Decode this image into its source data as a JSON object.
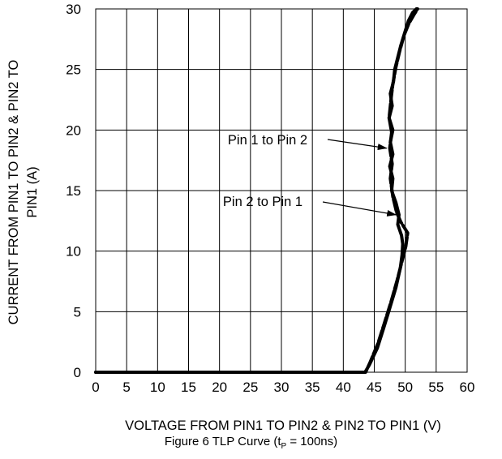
{
  "chart_data": {
    "type": "line",
    "title": "",
    "xlabel": "VOLTAGE FROM PIN1 TO PIN2 & PIN2 TO PIN1 (V)",
    "ylabel_line1": "CURRENT FROM PIN1 TO PIN2 & PIN2 TO",
    "ylabel_line2": "PIN1 (A)",
    "xlim": [
      0,
      60
    ],
    "ylim": [
      0,
      30
    ],
    "xticks": [
      0,
      5,
      10,
      15,
      20,
      25,
      30,
      35,
      40,
      45,
      50,
      55,
      60
    ],
    "yticks": [
      0,
      5,
      10,
      15,
      20,
      25,
      30
    ],
    "grid": true,
    "series": [
      {
        "name": "Pin 1 to Pin 2",
        "color": "#000000",
        "x": [
          0,
          20,
          40,
          43.5,
          44.2,
          45.5,
          46.5,
          47.5,
          48.5,
          49.2,
          49.5,
          49.6,
          49.4,
          48.8,
          49.0,
          48.5,
          47.8,
          48.0,
          47.5,
          48.0,
          47.6,
          48.0,
          47.4,
          47.9,
          47.6,
          48.1,
          48.3,
          48.8,
          49.3,
          49.9,
          50.5,
          51.2,
          51.8
        ],
        "y": [
          0,
          0,
          0,
          0,
          0.6,
          2.0,
          3.6,
          5.3,
          7.0,
          8.6,
          9.7,
          10.6,
          11.3,
          12.2,
          13.0,
          14.0,
          15.0,
          16.0,
          17.0,
          18.0,
          19.0,
          20.0,
          21.0,
          22.0,
          23.0,
          24.0,
          25.0,
          26.0,
          27.0,
          28.0,
          29.0,
          29.7,
          30.0
        ]
      },
      {
        "name": "Pin 2 to Pin 1",
        "color": "#000000",
        "x": [
          0,
          20,
          40,
          43.6,
          44.3,
          45.6,
          46.6,
          47.7,
          48.7,
          49.4,
          50.1,
          50.4,
          49.3,
          48.6,
          48.0,
          47.6,
          47.9,
          47.5,
          47.8,
          47.4,
          47.7,
          48.0,
          48.5,
          49.1,
          49.8,
          50.6,
          51.5,
          52.0
        ],
        "y": [
          0,
          0,
          0,
          0,
          0.8,
          2.4,
          4.0,
          5.8,
          7.6,
          9.0,
          10.4,
          11.5,
          12.4,
          13.2,
          14.5,
          16.0,
          17.2,
          18.5,
          19.8,
          21.0,
          22.5,
          23.8,
          25.2,
          26.5,
          27.8,
          28.8,
          29.6,
          30.0
        ]
      }
    ],
    "annotations": [
      {
        "text": "Pin 1 to Pin 2",
        "x": 47.0,
        "y": 18.5
      },
      {
        "text": "Pin 2 to Pin 1",
        "x": 48.5,
        "y": 13.0
      }
    ]
  },
  "caption": {
    "prefix": "Figure 6 TLP Curve (t",
    "subscript": "P",
    "suffix": " = 100ns)"
  }
}
